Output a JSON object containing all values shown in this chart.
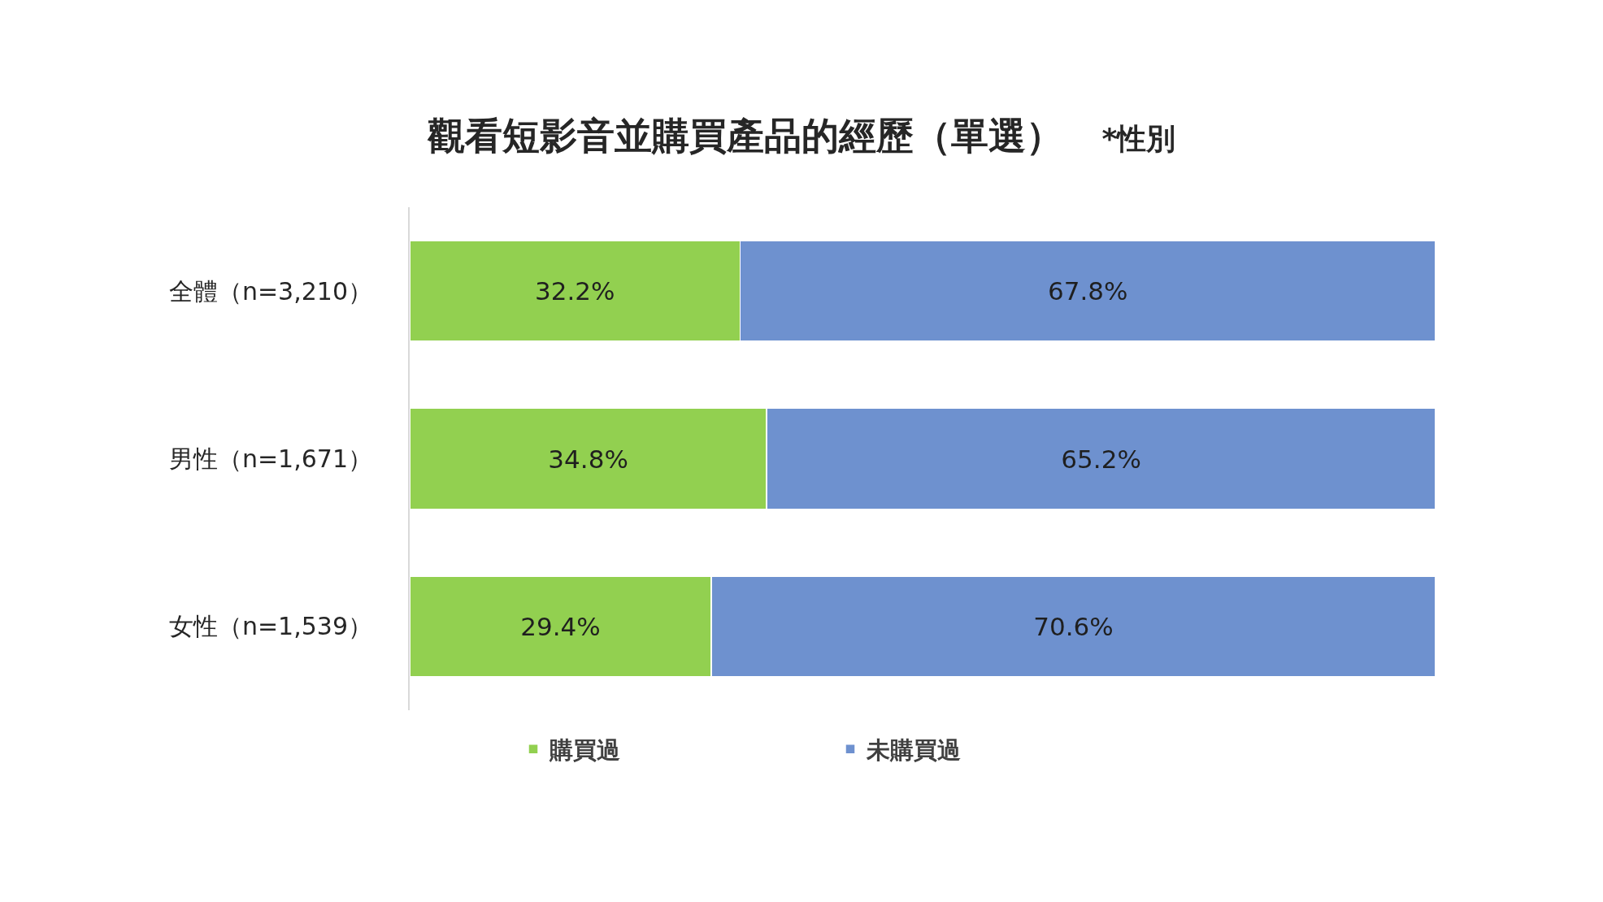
{
  "chart_data": {
    "type": "bar",
    "orientation": "horizontal",
    "stacked": true,
    "title": "觀看短影音並購買產品的經歷（單選）",
    "subtitle": "*性別",
    "categories": [
      "全體（n=3,210）",
      "男性（n=1,671）",
      "女性（n=1,539）"
    ],
    "series": [
      {
        "name": "購買過",
        "color": "#92d050",
        "values": [
          32.2,
          34.8,
          29.4
        ],
        "value_labels": [
          "32.2%",
          "34.8%",
          "29.4%"
        ]
      },
      {
        "name": "未購買過",
        "color": "#6e91cf",
        "values": [
          67.8,
          65.2,
          70.6
        ],
        "value_labels": [
          "67.8%",
          "65.2%",
          "70.6%"
        ]
      }
    ],
    "xlim": [
      0,
      100
    ],
    "tick_labels": "y",
    "legend": "bottom"
  }
}
